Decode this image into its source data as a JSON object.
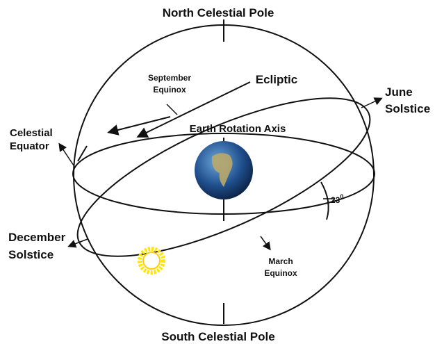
{
  "labels": {
    "north_pole": "North Celestial Pole",
    "south_pole": "South Celestial Pole",
    "ecliptic": "Ecliptic",
    "june_solstice": [
      "June",
      "Solstice"
    ],
    "september_equinox": [
      "September",
      "Equinox"
    ],
    "celestial_equator": [
      "Celestial",
      "Equator"
    ],
    "earth_axis": "Earth Rotation Axis",
    "december_solstice": [
      "December",
      "Solstice"
    ],
    "march_equinox": [
      "March",
      "Equinox"
    ],
    "angle": {
      "base": "23",
      "sup": "0"
    }
  }
}
